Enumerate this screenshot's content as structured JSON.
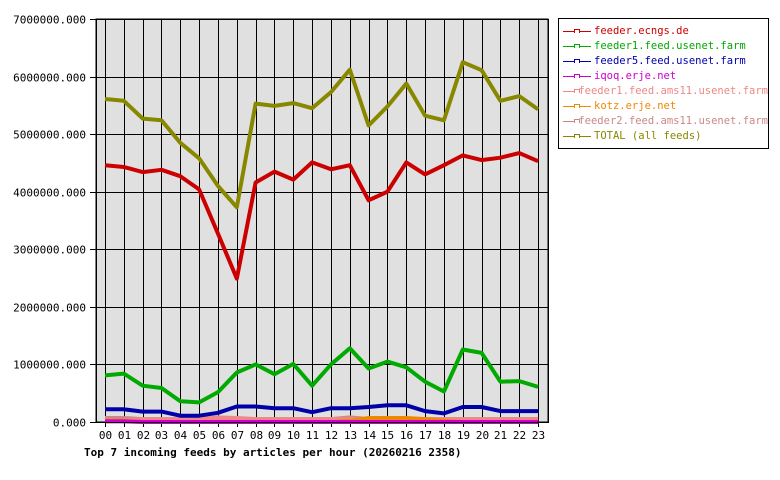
{
  "chart_data": {
    "type": "line",
    "title": "Top 7 incoming feeds by articles per hour (20260216 2358)",
    "xlabel": "",
    "ylabel": "",
    "ylim": [
      0,
      7000000
    ],
    "y_ticks": [
      "0.000",
      "1000000.000",
      "2000000.000",
      "3000000.000",
      "4000000.000",
      "5000000.000",
      "6000000.000",
      "7000000.000"
    ],
    "grid": true,
    "legend_position": "right",
    "categories": [
      "00",
      "01",
      "02",
      "03",
      "04",
      "05",
      "06",
      "07",
      "08",
      "09",
      "10",
      "11",
      "12",
      "13",
      "14",
      "15",
      "16",
      "17",
      "18",
      "19",
      "20",
      "21",
      "22",
      "23"
    ],
    "series": [
      {
        "name": "feeder.ecngs.de",
        "color": "#cc0000",
        "values": [
          4460000,
          4430000,
          4340000,
          4380000,
          4270000,
          4040000,
          3270000,
          2490000,
          4160000,
          4350000,
          4210000,
          4510000,
          4390000,
          4460000,
          3850000,
          4000000,
          4510000,
          4300000,
          4460000,
          4630000,
          4550000,
          4590000,
          4670000,
          4530000
        ]
      },
      {
        "name": "feeder1.feed.usenet.farm",
        "color": "#00aa00",
        "values": [
          810000,
          840000,
          630000,
          590000,
          360000,
          340000,
          520000,
          860000,
          1000000,
          830000,
          1010000,
          630000,
          1000000,
          1280000,
          930000,
          1050000,
          950000,
          700000,
          530000,
          1260000,
          1200000,
          700000,
          710000,
          610000
        ]
      },
      {
        "name": "feeder5.feed.usenet.farm",
        "color": "#0000aa",
        "values": [
          220000,
          220000,
          180000,
          180000,
          110000,
          110000,
          160000,
          270000,
          270000,
          240000,
          240000,
          170000,
          240000,
          240000,
          260000,
          290000,
          290000,
          190000,
          150000,
          260000,
          260000,
          190000,
          190000,
          190000
        ]
      },
      {
        "name": "iqoq.erje.net",
        "color": "#cc00cc",
        "values": [
          10000,
          10000,
          0,
          0,
          0,
          0,
          0,
          0,
          0,
          0,
          0,
          0,
          0,
          0,
          0,
          0,
          0,
          0,
          0,
          0,
          0,
          0,
          0,
          0
        ]
      },
      {
        "name": "feeder1.feed.ams11.usenet.farm",
        "color": "#ee8888",
        "values": [
          20000,
          20000,
          50000,
          50000,
          50000,
          50000,
          80000,
          70000,
          50000,
          50000,
          50000,
          50000,
          50000,
          50000,
          50000,
          50000,
          50000,
          50000,
          50000,
          50000,
          50000,
          50000,
          50000,
          50000
        ]
      },
      {
        "name": "kotz.erje.net",
        "color": "#ee8800",
        "values": [
          20000,
          20000,
          0,
          0,
          0,
          0,
          0,
          0,
          0,
          0,
          0,
          0,
          0,
          20000,
          70000,
          70000,
          70000,
          50000,
          20000,
          0,
          0,
          0,
          0,
          0
        ]
      },
      {
        "name": "feeder2.feed.ams11.usenet.farm",
        "color": "#cc8888",
        "values": [
          70000,
          70000,
          50000,
          50000,
          50000,
          30000,
          30000,
          50000,
          50000,
          50000,
          50000,
          50000,
          50000,
          80000,
          50000,
          50000,
          50000,
          50000,
          50000,
          50000,
          50000,
          50000,
          50000,
          50000
        ]
      },
      {
        "name": "TOTAL (all feeds)",
        "color": "#888800",
        "values": [
          5610000,
          5580000,
          5270000,
          5240000,
          4850000,
          4580000,
          4100000,
          3730000,
          5530000,
          5490000,
          5540000,
          5450000,
          5730000,
          6120000,
          5150000,
          5480000,
          5880000,
          5320000,
          5240000,
          6250000,
          6110000,
          5580000,
          5660000,
          5430000
        ]
      }
    ]
  },
  "legend": {
    "items": [
      {
        "label": "feeder.ecngs.de",
        "color": "#cc0000"
      },
      {
        "label": "feeder1.feed.usenet.farm",
        "color": "#00aa00"
      },
      {
        "label": "feeder5.feed.usenet.farm",
        "color": "#0000aa"
      },
      {
        "label": "iqoq.erje.net",
        "color": "#cc00cc"
      },
      {
        "label": "feeder1.feed.ams11.usenet.farm",
        "color": "#ee8888"
      },
      {
        "label": "kotz.erje.net",
        "color": "#ee8800"
      },
      {
        "label": "feeder2.feed.ams11.usenet.farm",
        "color": "#cc8888"
      },
      {
        "label": "TOTAL (all feeds)",
        "color": "#888800"
      }
    ]
  },
  "colors": {
    "plot_background": "#e0e0e0",
    "grid": "#000000"
  }
}
